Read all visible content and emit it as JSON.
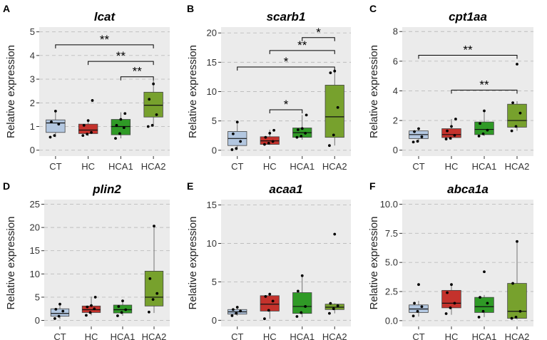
{
  "figure": {
    "y_axis_label": "Relative expression",
    "colors": {
      "CT": "#b3c7e0",
      "HC": "#c4322c",
      "HCA1": "#2f9a26",
      "HCA2": "#77a12d",
      "panel_bg": "#ebebeb",
      "grid": "#bdbdbd"
    }
  },
  "chart_data": [
    {
      "type": "box",
      "panel_letter": "A",
      "title": "lcat",
      "categories": [
        "CT",
        "HC",
        "HCA1",
        "HCA2"
      ],
      "ylim": [
        -0.25,
        5.2
      ],
      "yticks": [
        0,
        1,
        2,
        3,
        4,
        5
      ],
      "grid": true,
      "boxes": [
        {
          "q1": 0.75,
          "median": 1.15,
          "q3": 1.28,
          "whisker_low": 0.55,
          "whisker_high": 1.65,
          "points": [
            0.55,
            0.62,
            1.1,
            1.2,
            1.65
          ]
        },
        {
          "q1": 0.7,
          "median": 0.85,
          "q3": 1.1,
          "whisker_low": 0.6,
          "whisker_high": 1.3,
          "points": [
            0.62,
            0.68,
            0.75,
            1.05,
            1.25,
            2.1
          ]
        },
        {
          "q1": 0.65,
          "median": 1.0,
          "q3": 1.3,
          "whisker_low": 0.5,
          "whisker_high": 1.6,
          "points": [
            0.5,
            0.7,
            0.95,
            1.05,
            1.3,
            1.55
          ]
        },
        {
          "q1": 1.4,
          "median": 1.9,
          "q3": 2.45,
          "whisker_low": 1.0,
          "whisker_high": 3.05,
          "points": [
            1.0,
            1.05,
            1.5,
            2.15,
            2.8
          ]
        }
      ],
      "significance": [
        {
          "from": "CT",
          "to": "HCA2",
          "y": 4.45,
          "label": "**"
        },
        {
          "from": "HC",
          "to": "HCA2",
          "y": 3.75,
          "label": "**"
        },
        {
          "from": "HCA1",
          "to": "HCA2",
          "y": 3.1,
          "label": "**"
        }
      ]
    },
    {
      "type": "box",
      "panel_letter": "B",
      "title": "scarb1",
      "categories": [
        "CT",
        "HC",
        "HCA1",
        "HCA2"
      ],
      "ylim": [
        -1,
        21
      ],
      "yticks": [
        0,
        5,
        10,
        15,
        20
      ],
      "grid": true,
      "boxes": [
        {
          "q1": 0.8,
          "median": 2.0,
          "q3": 3.2,
          "whisker_low": 0.1,
          "whisker_high": 4.8,
          "points": [
            0.1,
            0.3,
            1.5,
            2.8,
            4.8
          ]
        },
        {
          "q1": 1.0,
          "median": 1.6,
          "q3": 2.3,
          "whisker_low": 0.9,
          "whisker_high": 3.5,
          "points": [
            1.0,
            1.2,
            1.5,
            2.2,
            2.9,
            3.4
          ]
        },
        {
          "q1": 2.2,
          "median": 3.0,
          "q3": 3.8,
          "whisker_low": 1.8,
          "whisker_high": 6.0,
          "points": [
            2.2,
            2.4,
            2.9,
            3.5,
            3.7,
            6.0
          ]
        },
        {
          "q1": 2.2,
          "median": 5.7,
          "q3": 11.1,
          "whisker_low": 0.8,
          "whisker_high": 13.8,
          "points": [
            0.8,
            2.6,
            7.3,
            13.2,
            13.5
          ]
        }
      ],
      "significance": [
        {
          "from": "HCA1",
          "to": "HCA2",
          "y": 19.2,
          "label": "*"
        },
        {
          "from": "HC",
          "to": "HCA2",
          "y": 17.0,
          "label": "**"
        },
        {
          "from": "CT",
          "to": "HCA2",
          "y": 14.2,
          "label": "*"
        },
        {
          "from": "HC",
          "to": "HCA1",
          "y": 6.9,
          "label": "*"
        }
      ]
    },
    {
      "type": "box",
      "panel_letter": "C",
      "title": "cpt1aa",
      "categories": [
        "CT",
        "HC",
        "HCA1",
        "HCA2"
      ],
      "ylim": [
        -0.4,
        8.3
      ],
      "yticks": [
        0,
        2,
        4,
        6,
        8
      ],
      "grid": true,
      "boxes": [
        {
          "q1": 0.78,
          "median": 1.05,
          "q3": 1.3,
          "whisker_low": 0.55,
          "whisker_high": 1.45,
          "points": [
            0.55,
            0.6,
            0.9,
            1.25,
            1.45
          ]
        },
        {
          "q1": 0.85,
          "median": 1.05,
          "q3": 1.45,
          "whisker_low": 0.7,
          "whisker_high": 2.1,
          "points": [
            0.75,
            0.8,
            1.0,
            1.3,
            1.6,
            2.1
          ]
        },
        {
          "q1": 1.05,
          "median": 1.4,
          "q3": 1.9,
          "whisker_low": 0.95,
          "whisker_high": 2.7,
          "points": [
            0.95,
            1.1,
            1.35,
            1.8,
            2.65
          ]
        },
        {
          "q1": 1.55,
          "median": 2.0,
          "q3": 3.1,
          "whisker_low": 1.3,
          "whisker_high": 3.3,
          "points": [
            1.3,
            1.6,
            2.5,
            3.2,
            5.8
          ]
        }
      ],
      "significance": [
        {
          "from": "CT",
          "to": "HCA2",
          "y": 6.4,
          "label": "**"
        },
        {
          "from": "HC",
          "to": "HCA2",
          "y": 4.05,
          "label": "**"
        }
      ]
    },
    {
      "type": "box",
      "panel_letter": "D",
      "title": "plin2",
      "categories": [
        "CT",
        "HC",
        "HCA1",
        "HCA2"
      ],
      "ylim": [
        -1.3,
        26
      ],
      "yticks": [
        0,
        5,
        10,
        15,
        20,
        25
      ],
      "grid": true,
      "boxes": [
        {
          "q1": 0.9,
          "median": 1.5,
          "q3": 2.5,
          "whisker_low": 0.3,
          "whisker_high": 3.6,
          "points": [
            0.4,
            0.9,
            2.0,
            2.4,
            3.5
          ]
        },
        {
          "q1": 1.7,
          "median": 2.3,
          "q3": 3.1,
          "whisker_low": 1.1,
          "whisker_high": 5.1,
          "points": [
            1.1,
            1.7,
            2.5,
            2.9,
            3.2,
            5.0
          ]
        },
        {
          "q1": 1.6,
          "median": 2.3,
          "q3": 3.3,
          "whisker_low": 1.0,
          "whisker_high": 4.4,
          "points": [
            1.0,
            1.7,
            2.3,
            3.0,
            4.2
          ]
        },
        {
          "q1": 3.1,
          "median": 5.0,
          "q3": 10.6,
          "whisker_low": 1.6,
          "whisker_high": 20.3,
          "points": [
            1.8,
            4.5,
            5.8,
            9.0,
            20.3
          ]
        }
      ],
      "significance": []
    },
    {
      "type": "box",
      "panel_letter": "E",
      "title": "acaa1",
      "categories": [
        "CT",
        "HC",
        "HCA1",
        "HCA2"
      ],
      "ylim": [
        -0.8,
        15.7
      ],
      "yticks": [
        0,
        5,
        10,
        15
      ],
      "grid": true,
      "boxes": [
        {
          "q1": 0.8,
          "median": 1.1,
          "q3": 1.4,
          "whisker_low": 0.6,
          "whisker_high": 1.7,
          "points": [
            0.6,
            0.9,
            1.2,
            1.4,
            1.7
          ]
        },
        {
          "q1": 1.2,
          "median": 2.1,
          "q3": 3.2,
          "whisker_low": 0.2,
          "whisker_high": 3.5,
          "points": [
            0.2,
            1.3,
            2.5,
            3.1,
            3.4
          ]
        },
        {
          "q1": 0.9,
          "median": 1.8,
          "q3": 3.6,
          "whisker_low": 0.4,
          "whisker_high": 5.8,
          "points": [
            0.5,
            1.0,
            1.8,
            3.8,
            5.8
          ]
        },
        {
          "q1": 1.4,
          "median": 1.7,
          "q3": 2.1,
          "whisker_low": 0.9,
          "whisker_high": 2.2,
          "points": [
            0.9,
            1.5,
            1.9,
            2.2,
            11.2
          ]
        }
      ],
      "significance": []
    },
    {
      "type": "box",
      "panel_letter": "F",
      "title": "abca1a",
      "categories": [
        "CT",
        "HC",
        "HCA1",
        "HCA2"
      ],
      "ylim": [
        -0.5,
        10.4
      ],
      "yticks": [
        0.0,
        2.5,
        5.0,
        7.5,
        10.0
      ],
      "ytick_labels": [
        "0.0",
        "2.5",
        "5.0",
        "7.5",
        "10.0"
      ],
      "grid": true,
      "boxes": [
        {
          "q1": 0.7,
          "median": 1.0,
          "q3": 1.35,
          "whisker_low": 0.35,
          "whisker_high": 1.7,
          "points": [
            0.4,
            0.8,
            1.2,
            1.5,
            3.1
          ]
        },
        {
          "q1": 1.1,
          "median": 1.5,
          "q3": 2.6,
          "whisker_low": 0.5,
          "whisker_high": 3.2,
          "points": [
            0.6,
            1.1,
            1.5,
            2.4,
            3.1
          ]
        },
        {
          "q1": 0.7,
          "median": 1.2,
          "q3": 2.0,
          "whisker_low": 0.3,
          "whisker_high": 2.2,
          "points": [
            0.3,
            0.8,
            1.5,
            2.0,
            4.2
          ]
        },
        {
          "q1": 0.2,
          "median": 0.8,
          "q3": 3.2,
          "whisker_low": 0.1,
          "whisker_high": 6.8,
          "points": [
            0.2,
            0.3,
            0.8,
            3.2,
            6.8
          ]
        }
      ],
      "significance": []
    }
  ]
}
